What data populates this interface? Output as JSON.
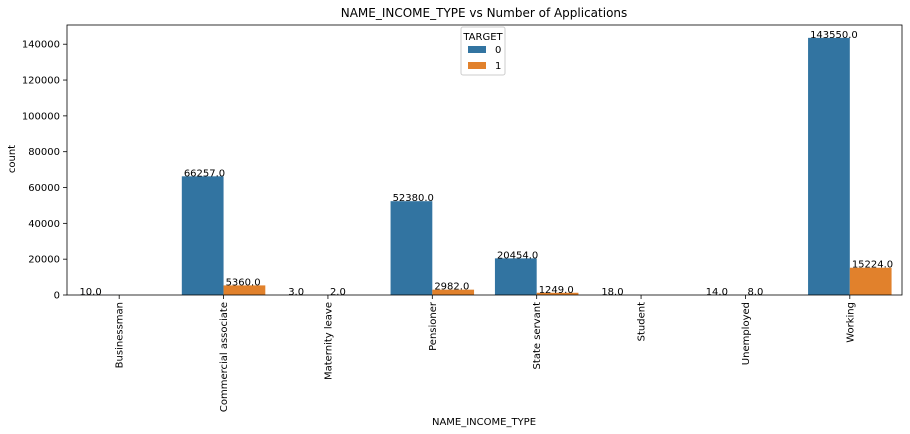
{
  "chart_data": {
    "type": "bar",
    "title": "NAME_INCOME_TYPE vs Number of Applications",
    "xlabel": "NAME_INCOME_TYPE",
    "ylabel": "count",
    "categories": [
      "Businessman",
      "Commercial associate",
      "Maternity leave",
      "Pensioner",
      "State servant",
      "Student",
      "Unemployed",
      "Working"
    ],
    "series": [
      {
        "name": "0",
        "color": "#3274a1",
        "values": [
          10,
          66257,
          3,
          52380,
          20454,
          18,
          14,
          143550
        ]
      },
      {
        "name": "1",
        "color": "#e1812c",
        "values": [
          null,
          5360,
          2,
          2982,
          1249,
          null,
          8,
          15224
        ]
      }
    ],
    "data_labels": [
      [
        "10.0",
        "66257.0",
        "3.0",
        "52380.0",
        "20454.0",
        "18.0",
        "14.0",
        "143550.0"
      ],
      [
        null,
        "5360.0",
        "2.0",
        "2982.0",
        "1249.0",
        null,
        "8.0",
        "15224.0"
      ]
    ],
    "yticks": [
      0,
      20000,
      40000,
      60000,
      80000,
      100000,
      120000,
      140000
    ],
    "ylim": [
      0,
      150727.5
    ],
    "legend": {
      "title": "TARGET",
      "placement": "upper center"
    },
    "grid": false
  }
}
